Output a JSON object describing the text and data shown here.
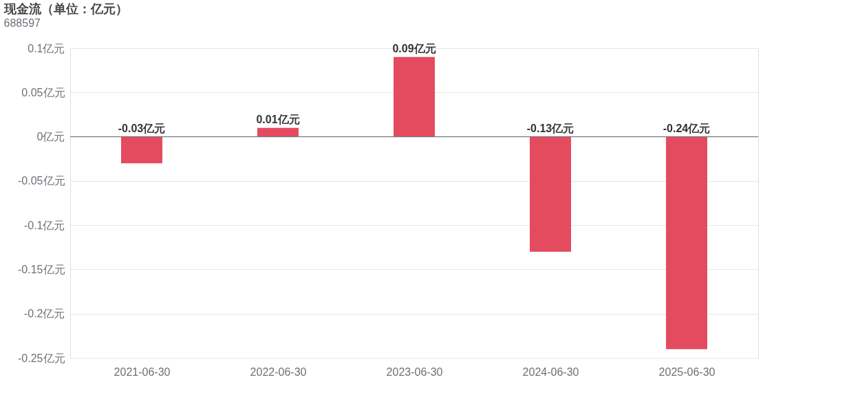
{
  "chart_data": {
    "type": "bar",
    "title": "现金流（单位：亿元）",
    "subtitle": "688597",
    "categories": [
      "2021-06-30",
      "2022-06-30",
      "2023-06-30",
      "2024-06-30",
      "2025-06-30"
    ],
    "values": [
      -0.03,
      0.01,
      0.09,
      -0.13,
      -0.24
    ],
    "value_labels": [
      "-0.03亿元",
      "0.01亿元",
      "0.09亿元",
      "-0.13亿元",
      "-0.24亿元"
    ],
    "color": "#e54b5f",
    "ylim": [
      -0.25,
      0.1
    ],
    "yticks": [
      {
        "value": -0.25,
        "label": "-0.25亿元"
      },
      {
        "value": -0.2,
        "label": "-0.2亿元"
      },
      {
        "value": -0.15,
        "label": "-0.15亿元"
      },
      {
        "value": -0.1,
        "label": "-0.1亿元"
      },
      {
        "value": -0.05,
        "label": "-0.05亿元"
      },
      {
        "value": 0,
        "label": "0亿元"
      },
      {
        "value": 0.05,
        "label": "0.05亿元"
      },
      {
        "value": 0.1,
        "label": "0.1亿元"
      }
    ],
    "ref_lines": [
      {
        "axis": "y",
        "value": 0,
        "color": "#6e7079"
      }
    ],
    "grid": "y"
  }
}
